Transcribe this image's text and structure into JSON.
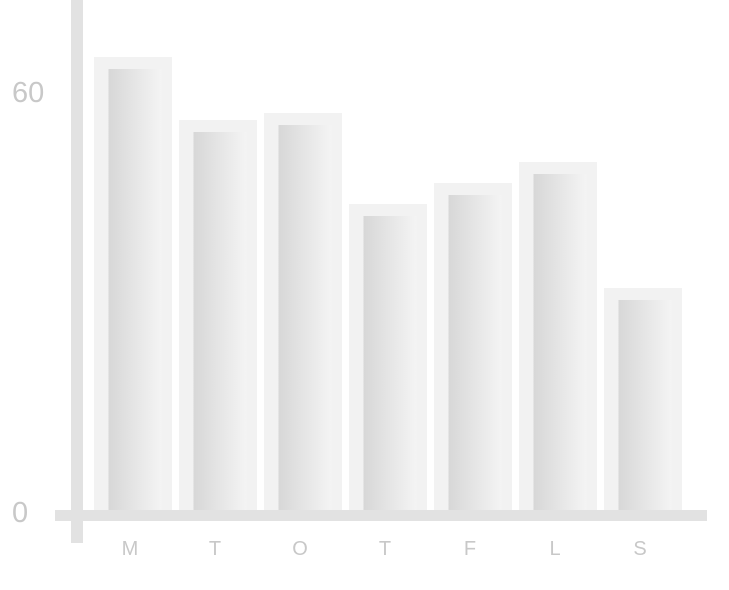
{
  "chart_data": {
    "type": "bar",
    "categories": [
      "M",
      "T",
      "O",
      "T",
      "F",
      "L",
      "S"
    ],
    "values": [
      63,
      54,
      55,
      42,
      45,
      48,
      30
    ],
    "y_ticks": [
      "0",
      "60"
    ],
    "title": "",
    "xlabel": "",
    "ylabel": "",
    "ylim": [
      0,
      73
    ],
    "grid": false,
    "legend": "none"
  },
  "colors": {
    "axis": "#e2e2e2",
    "bar_frame": "#f2f2f2",
    "bar_light": "#f4f4f4",
    "bar_dark": "#d7d7d7",
    "label_text": "#c8c8c8"
  }
}
